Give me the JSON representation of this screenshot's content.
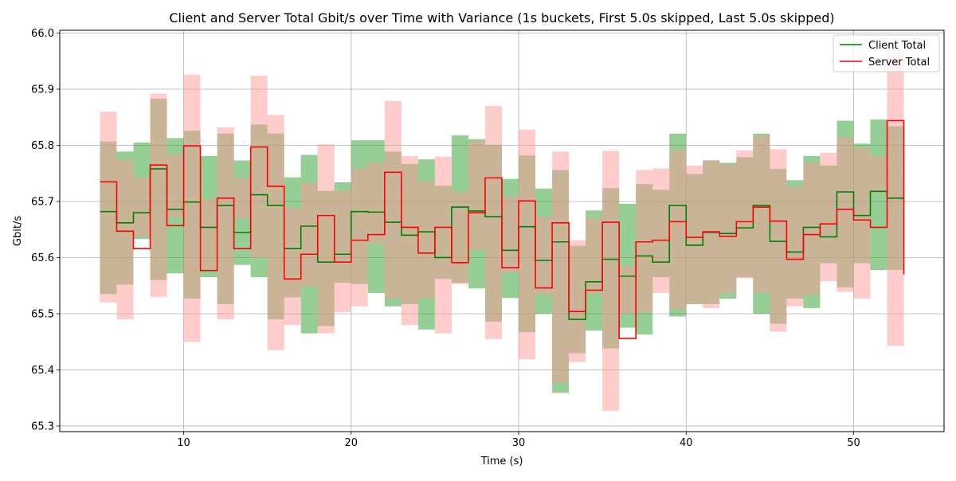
{
  "chart_data": {
    "type": "line",
    "title": "Client and Server Total Gbit/s over Time with Variance (1s buckets, First 5.0s skipped, Last 5.0s skipped)",
    "xlabel": "Time (s)",
    "ylabel": "Gbit/s",
    "xlim": [
      2.6,
      55.4
    ],
    "ylim": [
      65.29,
      66.005
    ],
    "xticks": [
      10,
      20,
      30,
      40,
      50
    ],
    "yticks": [
      65.3,
      65.4,
      65.5,
      65.6,
      65.7,
      65.8,
      65.9,
      66.0
    ],
    "grid": true,
    "legend_position": "top-right",
    "step": "post",
    "x": [
      5,
      6,
      7,
      8,
      9,
      10,
      11,
      12,
      13,
      14,
      15,
      16,
      17,
      18,
      19,
      20,
      21,
      22,
      23,
      24,
      25,
      26,
      27,
      28,
      29,
      30,
      31,
      32,
      33,
      34,
      35,
      36,
      37,
      38,
      39,
      40,
      41,
      42,
      43,
      44,
      45,
      46,
      47,
      48,
      49,
      50,
      51,
      52,
      53
    ],
    "series": [
      {
        "name": "Client Total",
        "color": "#008000",
        "band_color": "#2ca02c",
        "values": [
          65.682,
          65.662,
          65.68,
          65.758,
          65.686,
          65.699,
          65.654,
          65.693,
          65.645,
          65.712,
          65.693,
          65.616,
          65.656,
          65.592,
          65.606,
          65.682,
          65.681,
          65.663,
          65.64,
          65.646,
          65.6,
          65.69,
          65.683,
          65.673,
          65.613,
          65.655,
          65.595,
          65.628,
          65.49,
          65.557,
          65.597,
          65.567,
          65.603,
          65.592,
          65.693,
          65.622,
          65.645,
          65.643,
          65.653,
          65.693,
          65.629,
          65.61,
          65.654,
          65.637,
          65.717,
          65.675,
          65.718,
          65.706,
          65.706
        ],
        "lower": [
          65.557,
          65.535,
          65.552,
          65.633,
          65.56,
          65.572,
          65.527,
          65.565,
          65.517,
          65.587,
          65.565,
          65.49,
          65.529,
          65.465,
          65.478,
          65.555,
          65.553,
          65.537,
          65.513,
          65.517,
          65.472,
          65.562,
          65.555,
          65.545,
          65.486,
          65.528,
          65.467,
          65.5,
          65.359,
          65.43,
          65.47,
          65.438,
          65.475,
          65.463,
          65.565,
          65.495,
          65.517,
          65.517,
          65.527,
          65.565,
          65.5,
          65.482,
          65.527,
          65.51,
          65.59,
          65.547,
          65.59,
          65.578,
          65.578
        ],
        "upper": [
          65.807,
          65.789,
          65.805,
          65.883,
          65.813,
          65.826,
          65.781,
          65.821,
          65.773,
          65.837,
          65.821,
          65.743,
          65.783,
          65.719,
          65.734,
          65.809,
          65.809,
          65.789,
          65.767,
          65.775,
          65.728,
          65.818,
          65.811,
          65.801,
          65.74,
          65.782,
          65.723,
          65.756,
          65.621,
          65.684,
          65.724,
          65.696,
          65.731,
          65.721,
          65.821,
          65.749,
          65.773,
          65.769,
          65.779,
          65.821,
          65.758,
          65.738,
          65.781,
          65.764,
          65.844,
          65.803,
          65.846,
          65.834,
          65.834
        ]
      },
      {
        "name": "Server Total",
        "color": "#ff0000",
        "band_color": "#ff9999",
        "values": [
          65.735,
          65.647,
          65.616,
          65.765,
          65.657,
          65.799,
          65.577,
          65.706,
          65.616,
          65.797,
          65.727,
          65.562,
          65.606,
          65.675,
          65.592,
          65.631,
          65.641,
          65.752,
          65.654,
          65.608,
          65.654,
          65.591,
          65.68,
          65.742,
          65.582,
          65.701,
          65.546,
          65.662,
          65.504,
          65.542,
          65.663,
          65.456,
          65.628,
          65.631,
          65.664,
          65.636,
          65.646,
          65.638,
          65.664,
          65.69,
          65.665,
          65.597,
          65.641,
          65.66,
          65.686,
          65.667,
          65.654,
          65.844,
          65.57
        ],
        "lower": [
          65.61,
          65.52,
          65.49,
          65.638,
          65.53,
          65.672,
          65.45,
          65.58,
          65.49,
          65.67,
          65.6,
          65.435,
          65.48,
          65.548,
          65.465,
          65.503,
          65.513,
          65.625,
          65.527,
          65.48,
          65.528,
          65.465,
          65.553,
          65.614,
          65.455,
          65.574,
          65.419,
          65.535,
          65.377,
          65.414,
          65.536,
          65.327,
          65.5,
          65.503,
          65.537,
          65.508,
          65.518,
          65.51,
          65.537,
          65.563,
          65.537,
          65.468,
          65.513,
          65.533,
          65.558,
          65.539,
          65.527,
          65.716,
          65.443
        ],
        "upper": [
          65.86,
          65.774,
          65.742,
          65.892,
          65.784,
          65.926,
          65.704,
          65.832,
          65.742,
          65.924,
          65.854,
          65.689,
          65.733,
          65.802,
          65.719,
          65.759,
          65.769,
          65.879,
          65.781,
          65.736,
          65.78,
          65.717,
          65.807,
          65.87,
          65.709,
          65.828,
          65.673,
          65.789,
          65.631,
          65.67,
          65.79,
          65.585,
          65.756,
          65.759,
          65.791,
          65.764,
          65.774,
          65.766,
          65.791,
          65.817,
          65.793,
          65.726,
          65.769,
          65.787,
          65.814,
          65.795,
          65.781,
          65.972,
          65.697
        ]
      }
    ]
  }
}
